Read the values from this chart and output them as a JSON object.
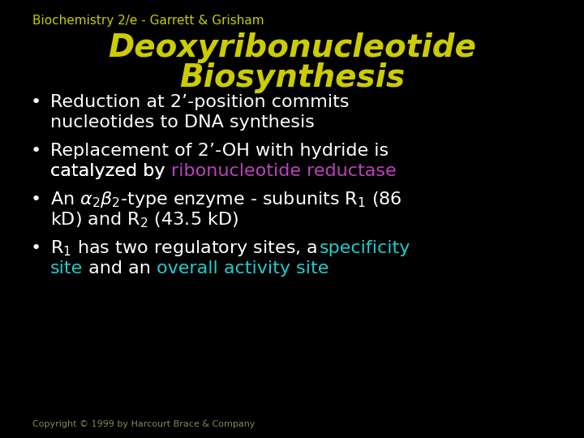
{
  "background_color": "#000000",
  "header_text": "Biochemistry 2/e - Garrett & Grisham",
  "header_color": "#cccc00",
  "header_fontsize": 11,
  "title_line1": "Deoxyribonucleotide",
  "title_line2": "Biosynthesis",
  "title_color": "#cccc00",
  "title_fontsize": 28,
  "bullet_color": "#ffffff",
  "bullet_fontsize": 16,
  "copyright_text": "Copyright © 1999 by Harcourt Brace & Company",
  "copyright_color": "#888855",
  "copyright_fontsize": 8,
  "purple_color": "#bb44bb",
  "cyan_color": "#22cccc",
  "white": "#ffffff"
}
